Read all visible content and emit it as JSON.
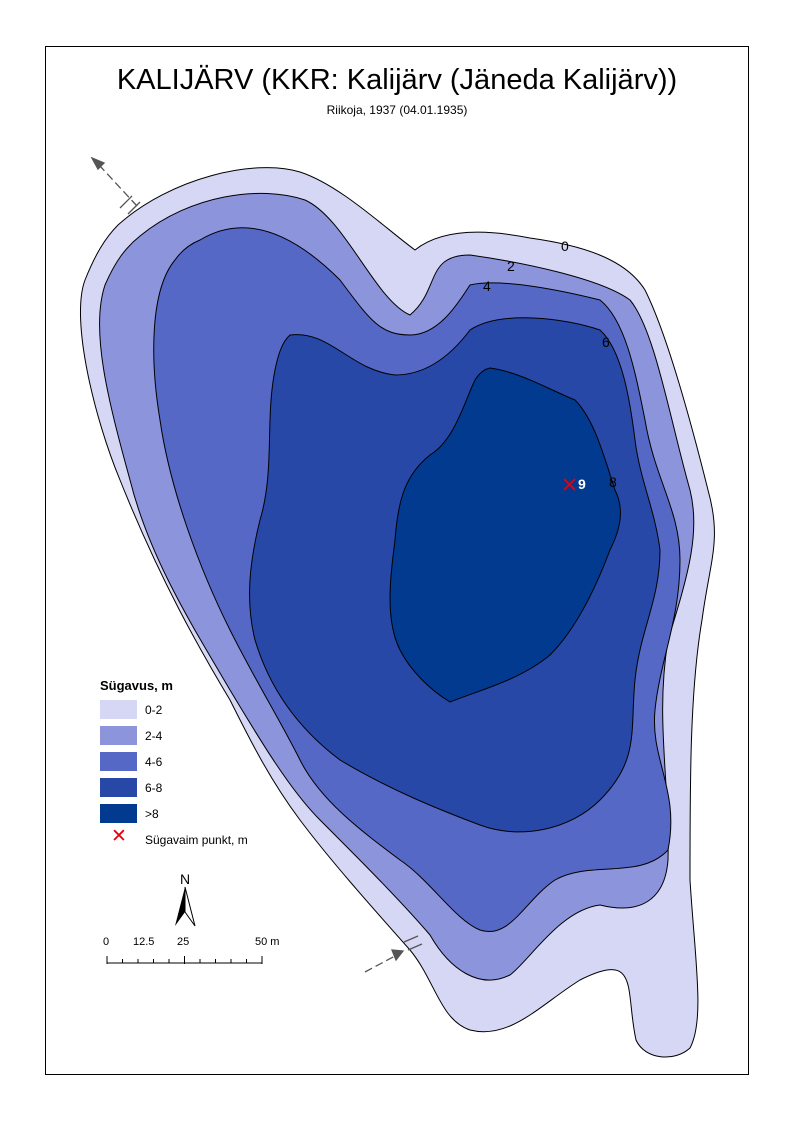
{
  "map": {
    "title": "KALIJÄRV (KKR: Kalijärv (Jäneda Kalijärv))",
    "subtitle": "Riikoja, 1937 (04.01.1935)"
  },
  "depth_labels": {
    "c0": "0",
    "c2": "2",
    "c4": "4",
    "c6": "6",
    "c8": "8",
    "deepest": "9"
  },
  "legend": {
    "title": "Sügavus, m",
    "items": [
      {
        "label": "0-2",
        "color": "#d6d6f5"
      },
      {
        "label": "2-4",
        "color": "#8c94dc"
      },
      {
        "label": "4-6",
        "color": "#5668c6"
      },
      {
        "label": "6-8",
        "color": "#2848a8"
      },
      {
        "label": ">8",
        "color": "#023a90"
      }
    ],
    "deepest_point_label": "Sügavaim punkt, m"
  },
  "north_arrow": {
    "label": "N"
  },
  "scale_bar": {
    "labels": [
      "0",
      "12.5",
      "25",
      "50 m"
    ]
  }
}
